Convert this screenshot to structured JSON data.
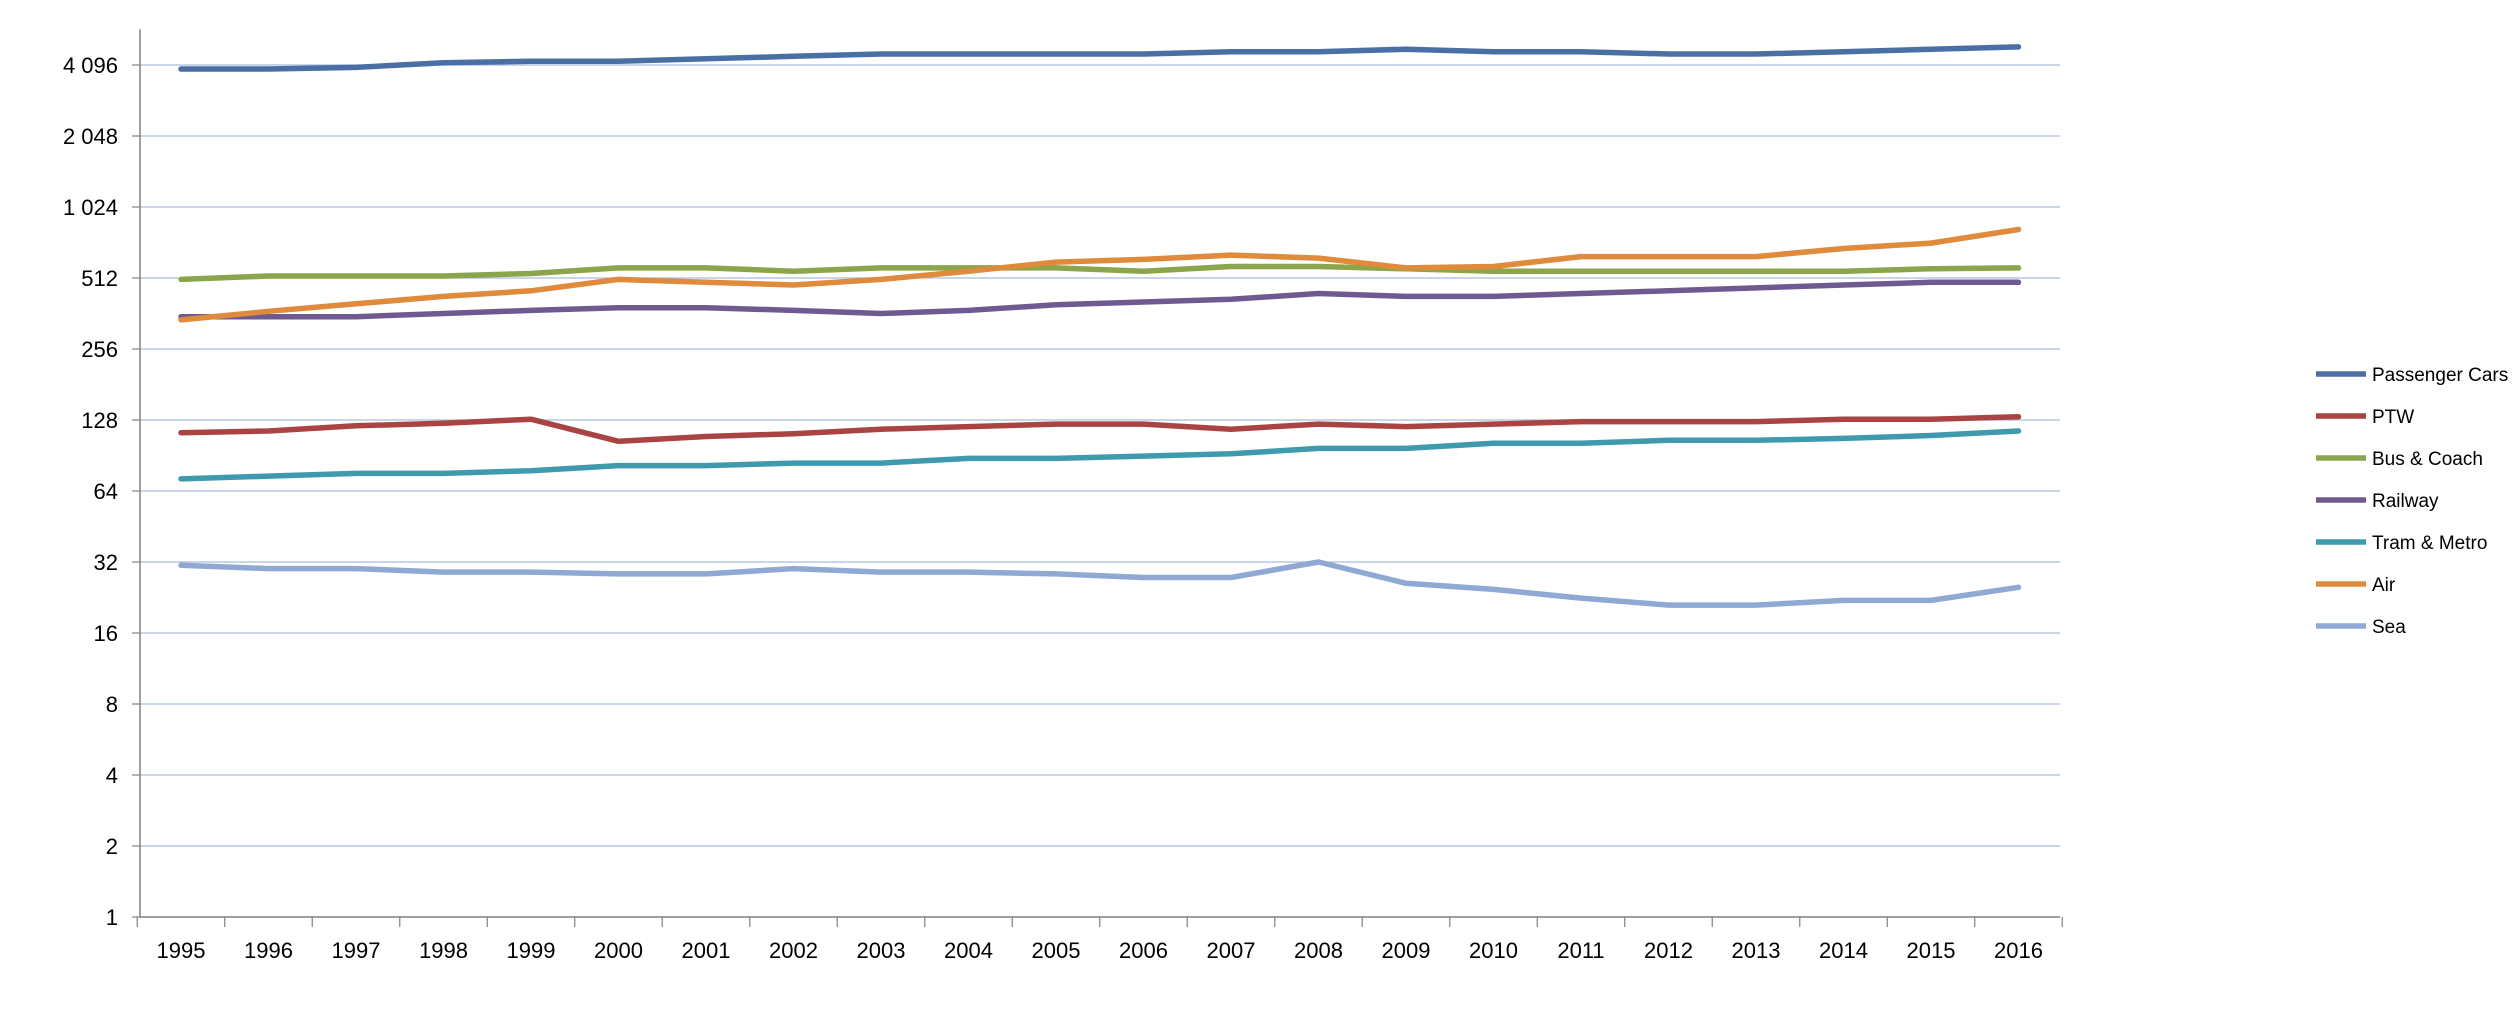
{
  "chart_data": {
    "type": "line",
    "title": "",
    "xlabel": "",
    "ylabel": "",
    "y_scale": "log2",
    "ylim": [
      1,
      5792
    ],
    "grid": true,
    "legend_position": "right",
    "categories": [
      "1995",
      "1996",
      "1997",
      "1998",
      "1999",
      "2000",
      "2001",
      "2002",
      "2003",
      "2004",
      "2005",
      "2006",
      "2007",
      "2008",
      "2009",
      "2010",
      "2011",
      "2012",
      "2013",
      "2014",
      "2015",
      "2016"
    ],
    "y_ticks": [
      {
        "value": 1,
        "label": "1"
      },
      {
        "value": 2,
        "label": "2"
      },
      {
        "value": 4,
        "label": "4"
      },
      {
        "value": 8,
        "label": "8"
      },
      {
        "value": 16,
        "label": "16"
      },
      {
        "value": 32,
        "label": "32"
      },
      {
        "value": 64,
        "label": "64"
      },
      {
        "value": 128,
        "label": "128"
      },
      {
        "value": 256,
        "label": "256"
      },
      {
        "value": 512,
        "label": "512"
      },
      {
        "value": 1024,
        "label": "1 024"
      },
      {
        "value": 2048,
        "label": "2 048"
      },
      {
        "value": 4096,
        "label": "4 096"
      }
    ],
    "series": [
      {
        "name": "Passenger Cars",
        "color": "#4A6FA5",
        "values": [
          3940,
          3940,
          4000,
          4190,
          4250,
          4250,
          4350,
          4460,
          4560,
          4560,
          4560,
          4560,
          4660,
          4660,
          4780,
          4660,
          4660,
          4560,
          4560,
          4660,
          4780,
          4890
        ]
      },
      {
        "name": "PTW",
        "color": "#A94442",
        "values": [
          113,
          115,
          121,
          124,
          129,
          104,
          109,
          112,
          117,
          120,
          123,
          123,
          117,
          123,
          120,
          123,
          126,
          126,
          126,
          129,
          129,
          132
        ]
      },
      {
        "name": "Bus & Coach",
        "color": "#8AA54B",
        "values": [
          505,
          522,
          522,
          522,
          535,
          565,
          565,
          547,
          565,
          565,
          565,
          547,
          573,
          573,
          560,
          547,
          547,
          547,
          547,
          547,
          560,
          565
        ]
      },
      {
        "name": "Railway",
        "color": "#6E5A91",
        "values": [
          351,
          351,
          351,
          362,
          373,
          383,
          383,
          373,
          362,
          373,
          394,
          405,
          416,
          440,
          428,
          428,
          440,
          452,
          465,
          478,
          491,
          491
        ]
      },
      {
        "name": "Tram & Metro",
        "color": "#3F9AAE",
        "values": [
          72,
          74,
          76,
          76,
          78,
          82,
          82,
          84,
          84,
          88,
          88,
          90,
          92,
          97,
          97,
          102,
          102,
          105,
          105,
          107,
          110,
          115
        ]
      },
      {
        "name": "Air",
        "color": "#E08A3C",
        "values": [
          340,
          370,
          398,
          428,
          452,
          505,
          491,
          478,
          505,
          547,
          598,
          614,
          640,
          622,
          565,
          573,
          631,
          631,
          631,
          683,
          720,
          822
        ]
      },
      {
        "name": "Sea",
        "color": "#8FA9D4",
        "values": [
          31,
          30,
          30,
          29,
          29,
          28.5,
          28.5,
          30,
          29,
          29,
          28.5,
          27.5,
          27.5,
          32,
          26,
          24.5,
          22.5,
          21,
          21,
          22,
          22,
          25
        ]
      }
    ]
  }
}
